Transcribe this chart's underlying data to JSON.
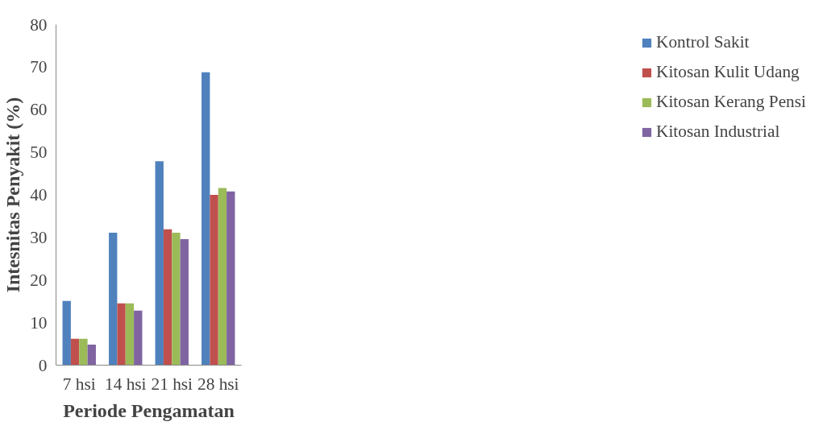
{
  "chart_data": {
    "type": "bar",
    "xlabel": "Periode Pengamatan",
    "ylabel": "Intesnitas Penyakit (%)",
    "categories": [
      "7 hsi",
      "14 hsi",
      "21 hsi",
      "28 hsi"
    ],
    "series": [
      {
        "name": "Kontrol Sakit",
        "color": "#4f81bd",
        "values": [
          15.1,
          31.1,
          47.9,
          68.8
        ]
      },
      {
        "name": "Kitosan Kulit Udang",
        "color": "#c0504d",
        "values": [
          6.2,
          14.5,
          31.9,
          40.0
        ]
      },
      {
        "name": "Kitosan Kerang Pensi",
        "color": "#9bbb59",
        "values": [
          6.2,
          14.5,
          31.1,
          41.6
        ]
      },
      {
        "name": "Kitosan Industrial",
        "color": "#8064a2",
        "values": [
          4.8,
          12.8,
          29.6,
          40.8
        ]
      }
    ],
    "ylim": [
      0,
      80
    ],
    "yticks": [
      0,
      10,
      20,
      30,
      40,
      50,
      60,
      70,
      80
    ],
    "grid": false,
    "legend": "right"
  }
}
